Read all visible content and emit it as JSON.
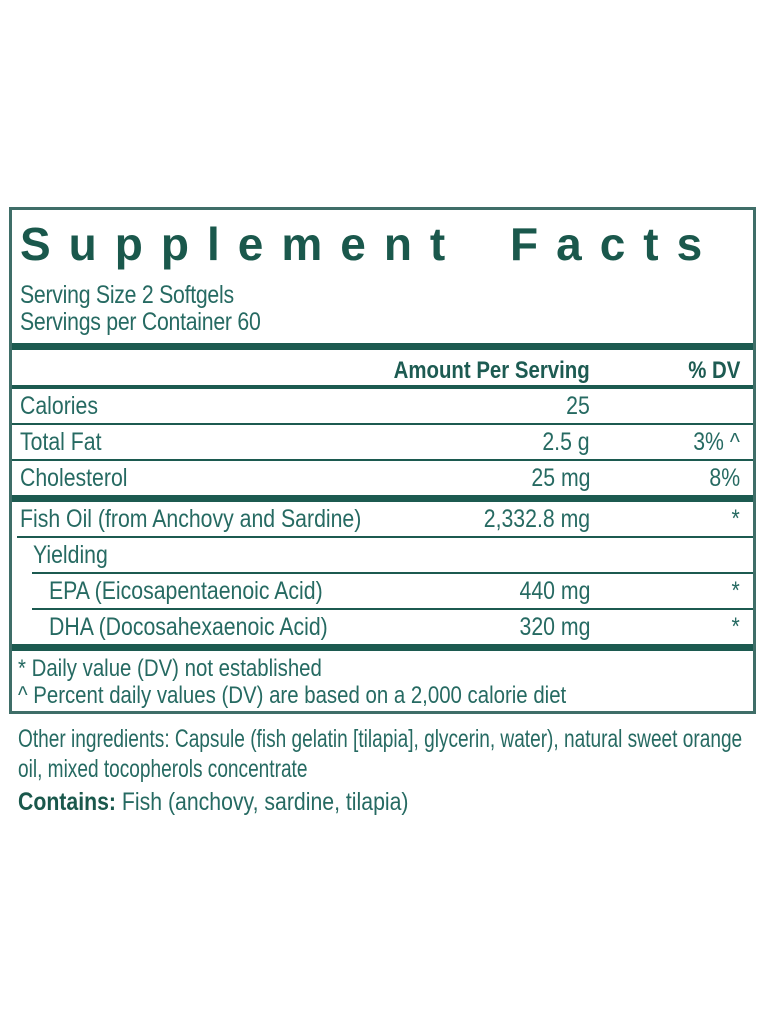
{
  "title": "Supplement Facts",
  "serving": {
    "size": "Serving Size 2 Softgels",
    "per_container": "Servings per Container 60"
  },
  "columns": {
    "amount": "Amount Per Serving",
    "dv": "% DV"
  },
  "rows": [
    {
      "label": "Calories",
      "amount": "25",
      "dv": ""
    },
    {
      "label": "Total Fat",
      "amount": "2.5 g",
      "dv": "3% ^"
    },
    {
      "label": "Cholesterol",
      "amount": "25 mg",
      "dv": "8%"
    },
    {
      "label": "Fish Oil (from Anchovy and Sardine)",
      "amount": "2,332.8 mg",
      "dv": "*"
    },
    {
      "label": "Yielding",
      "amount": "",
      "dv": ""
    },
    {
      "label": "EPA (Eicosapentaenoic Acid)",
      "amount": "440 mg",
      "dv": "*"
    },
    {
      "label": "DHA (Docosahexaenoic Acid)",
      "amount": "320 mg",
      "dv": "*"
    }
  ],
  "footnotes": [
    "* Daily value (DV) not established",
    "^ Percent daily values (DV) are based on a 2,000 calorie diet"
  ],
  "other_ingredients": "Other ingredients: Capsule (fish gelatin [tilapia], glycerin, water), natural sweet orange oil, mixed tocopherols concentrate",
  "contains": {
    "label": "Contains:",
    "value": " Fish (anchovy, sardine, tilapia)"
  },
  "colors": {
    "title": "#1a584c",
    "body_text": "#266a62",
    "rules": "#1c5a50",
    "border": "#3f6e68",
    "background": "#ffffff"
  }
}
